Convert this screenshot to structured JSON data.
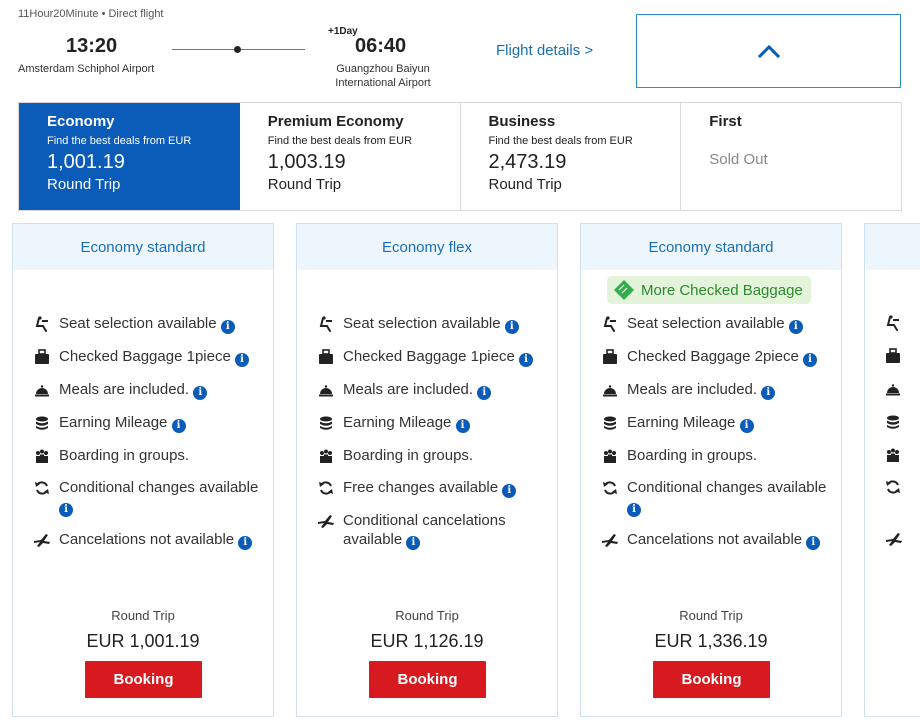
{
  "flight": {
    "duration": "11Hour20Minute • Direct flight",
    "departure_time": "13:20",
    "departure_airport": "Amsterdam Schiphol Airport",
    "arrival_time": "06:40",
    "arrival_day_offset": "+1Day",
    "arrival_airport": "Guangzhou Baiyun International Airport",
    "details_link": "Flight details >"
  },
  "cabins": [
    {
      "name": "Economy",
      "subtitle": "Find the best deals from EUR",
      "price": "1,001.19",
      "trip": "Round Trip"
    },
    {
      "name": "Premium Economy",
      "subtitle": "Find the best deals from EUR",
      "price": "1,003.19",
      "trip": "Round Trip"
    },
    {
      "name": "Business",
      "subtitle": "Find the best deals from EUR",
      "price": "2,473.19",
      "trip": "Round Trip"
    },
    {
      "name": "First",
      "status": "Sold Out"
    }
  ],
  "fares": [
    {
      "title": "Economy standard",
      "features": [
        {
          "icon": "seat-icon",
          "text": "Seat selection available"
        },
        {
          "icon": "baggage-icon",
          "text": "Checked Baggage 1piece"
        },
        {
          "icon": "meal-icon",
          "text": "Meals are included."
        },
        {
          "icon": "mileage-icon",
          "text": "Earning Mileage"
        },
        {
          "icon": "boarding-icon",
          "text": "Boarding in groups."
        },
        {
          "icon": "change-icon",
          "text": "Conditional changes available"
        },
        {
          "icon": "cancel-icon",
          "text": "Cancelations not available"
        }
      ],
      "trip": "Round Trip",
      "price": "EUR 1,001.19",
      "button": "Booking"
    },
    {
      "title": "Economy flex",
      "features": [
        {
          "icon": "seat-icon",
          "text": "Seat selection available"
        },
        {
          "icon": "baggage-icon",
          "text": "Checked Baggage 1piece"
        },
        {
          "icon": "meal-icon",
          "text": "Meals are included."
        },
        {
          "icon": "mileage-icon",
          "text": "Earning Mileage"
        },
        {
          "icon": "boarding-icon",
          "text": "Boarding in groups."
        },
        {
          "icon": "change-icon",
          "text": "Free changes available"
        },
        {
          "icon": "cancel-icon",
          "text": "Conditional cancelations available"
        }
      ],
      "trip": "Round Trip",
      "price": "EUR 1,126.19",
      "button": "Booking"
    },
    {
      "title": "Economy standard",
      "badge": "More Checked Baggage",
      "features": [
        {
          "icon": "seat-icon",
          "text": "Seat selection available"
        },
        {
          "icon": "baggage-icon",
          "text": "Checked Baggage 2piece"
        },
        {
          "icon": "meal-icon",
          "text": "Meals are included."
        },
        {
          "icon": "mileage-icon",
          "text": "Earning Mileage"
        },
        {
          "icon": "boarding-icon",
          "text": "Boarding in groups."
        },
        {
          "icon": "change-icon",
          "text": "Conditional changes available"
        },
        {
          "icon": "cancel-icon",
          "text": "Cancelations not available"
        }
      ],
      "trip": "Round Trip",
      "price": "EUR 1,336.19",
      "button": "Booking"
    }
  ],
  "info_glyph": "i",
  "colors": {
    "brand": "#0a5cb8",
    "link": "#1a6eb5",
    "booking": "#d71920",
    "badge_text": "#2d8a2d"
  }
}
